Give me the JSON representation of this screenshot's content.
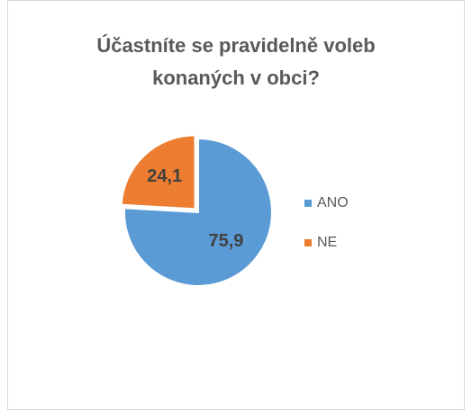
{
  "chart_data": {
    "type": "pie",
    "title": [
      "Účastníte se pravidelně voleb",
      "konaných v obci?"
    ],
    "categories": [
      "ANO",
      "NE"
    ],
    "values": [
      75.9,
      24.1
    ],
    "value_labels": [
      "75,9",
      "24,1"
    ],
    "colors": [
      "#5b9bd5",
      "#ed7d31"
    ],
    "legend": "right"
  }
}
